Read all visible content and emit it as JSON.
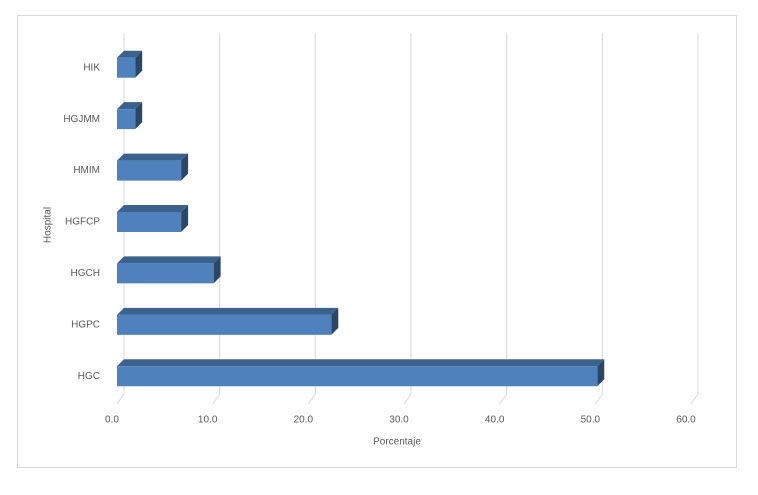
{
  "chart_data": {
    "type": "bar3d",
    "orientation": "horizontal",
    "categories": [
      "HGC",
      "HGPC",
      "HGCH",
      "HGFCP",
      "HMIM",
      "HGJMM",
      "HIK"
    ],
    "values": [
      50.2,
      22.4,
      10.1,
      6.7,
      6.7,
      1.9,
      1.9
    ],
    "color": "#4f81bd",
    "xlim": [
      0,
      60
    ],
    "xticks": [
      {
        "value": 0,
        "label": "0.0"
      },
      {
        "value": 10,
        "label": "10.0"
      },
      {
        "value": 20,
        "label": "20.0"
      },
      {
        "value": 30,
        "label": "30.0"
      },
      {
        "value": 40,
        "label": "40.0"
      },
      {
        "value": 50,
        "label": "50.0"
      },
      {
        "value": 60,
        "label": "60.0"
      }
    ],
    "xlabel": "Porcentaje",
    "ylabel": "Hospital",
    "grid": true
  }
}
